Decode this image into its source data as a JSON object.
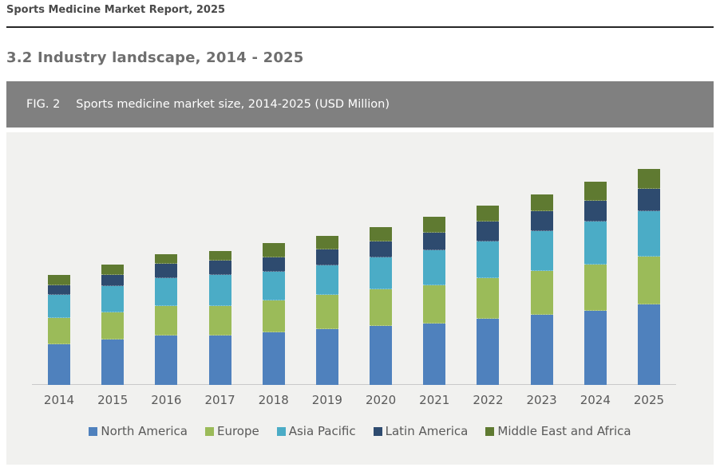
{
  "page": {
    "report_title": "Sports Medicine Market Report, 2025",
    "section_title": "3.2 Industry landscape, 2014 - 2025"
  },
  "figure": {
    "label": "FIG. 2",
    "title": "Sports medicine market size, 2014-2025 (USD Million)"
  },
  "chart_data": {
    "type": "bar",
    "stacked": true,
    "title": "Sports medicine market size, 2014-2025 (USD Million)",
    "xlabel": "",
    "ylabel": "",
    "value_axis_shown": false,
    "grid": false,
    "legend_position": "bottom",
    "categories": [
      "2014",
      "2015",
      "2016",
      "2017",
      "2018",
      "2019",
      "2020",
      "2021",
      "2022",
      "2023",
      "2024",
      "2025"
    ],
    "series": [
      {
        "name": "North America",
        "color": "#4F81BD",
        "values": [
          51,
          57,
          62,
          62,
          66,
          70,
          74,
          77,
          83,
          88,
          93,
          101
        ]
      },
      {
        "name": "Europe",
        "color": "#9BBB59",
        "values": [
          33,
          34,
          37,
          37,
          40,
          43,
          46,
          48,
          51,
          55,
          58,
          60
        ]
      },
      {
        "name": "Asia Pacific",
        "color": "#4BACC6",
        "values": [
          29,
          33,
          35,
          39,
          36,
          37,
          40,
          44,
          46,
          50,
          54,
          57
        ]
      },
      {
        "name": "Latin America",
        "color": "#2E4B6F",
        "values": [
          12,
          14,
          18,
          18,
          18,
          20,
          20,
          22,
          25,
          25,
          26,
          28
        ]
      },
      {
        "name": "Middle East and Africa",
        "color": "#5F7A31",
        "values": [
          13,
          13,
          12,
          12,
          18,
          17,
          18,
          20,
          20,
          21,
          24,
          25
        ]
      }
    ],
    "totals_relative_units": [
      138,
      151,
      164,
      168,
      178,
      187,
      198,
      211,
      225,
      239,
      255,
      271
    ],
    "note_units": "no value axis shown in figure; series values are relative bar heights"
  }
}
